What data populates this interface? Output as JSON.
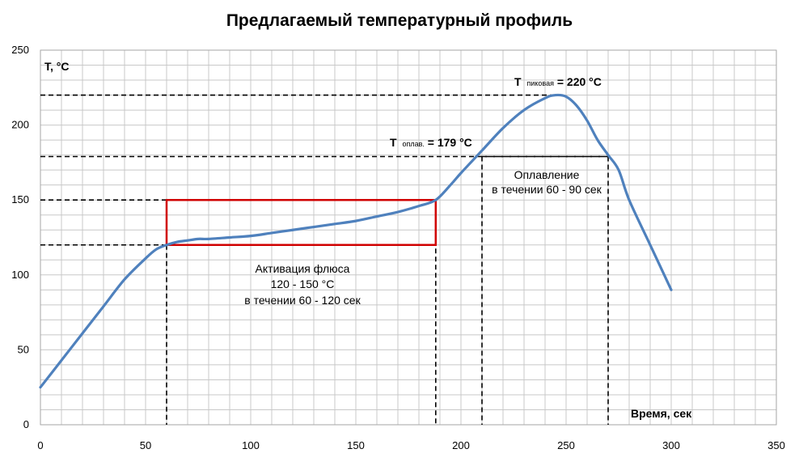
{
  "chart_data": {
    "type": "line",
    "title": "Предлагаемый температурный профиль",
    "ylabel": "T, °C",
    "xlabel": "Время, сек",
    "xlim": [
      0,
      350
    ],
    "ylim": [
      0,
      250
    ],
    "xticks": [
      0,
      50,
      100,
      150,
      200,
      250,
      300,
      350
    ],
    "yticks": [
      0,
      50,
      100,
      150,
      200,
      250
    ],
    "x_minor_step": 10,
    "y_minor_step": 10,
    "grid": true,
    "series": [
      {
        "color": "#4f81bd",
        "x": [
          0,
          10,
          20,
          30,
          40,
          50,
          55,
          60,
          65,
          70,
          75,
          80,
          90,
          100,
          110,
          120,
          130,
          140,
          150,
          160,
          170,
          180,
          188,
          195,
          200,
          210,
          220,
          230,
          240,
          245,
          250,
          255,
          260,
          265,
          270,
          275,
          280,
          290,
          300
        ],
        "y": [
          25,
          43,
          61,
          79,
          97,
          111,
          117,
          120,
          122,
          123,
          124,
          124,
          125,
          126,
          128,
          130,
          132,
          134,
          136,
          139,
          142,
          146,
          150,
          160,
          168,
          183,
          198,
          210,
          218,
          220,
          219,
          213,
          203,
          190,
          180,
          170,
          150,
          120,
          90
        ]
      }
    ],
    "annotations": {
      "t_peak_label": "T",
      "t_peak_sub": "пиковая",
      "t_peak_value": " = 220 °C",
      "t_reflow_label": "T",
      "t_reflow_sub": "оплав.",
      "t_reflow_value": " = 179 °C",
      "reflow_line1": "Оплавление",
      "reflow_line2": "в течении 60 - 90 сек",
      "activation_line1": "Активация флюса",
      "activation_line2": "120 - 150 °C",
      "activation_line3": "в течении 60 - 120 сек"
    },
    "reference_lines": {
      "horizontal_y": [
        220,
        179,
        150,
        120
      ],
      "vertical_x": [
        60,
        188,
        210,
        270
      ]
    },
    "activation_box": {
      "x": [
        60,
        188
      ],
      "y": [
        120,
        150
      ],
      "color": "#d00000"
    }
  }
}
